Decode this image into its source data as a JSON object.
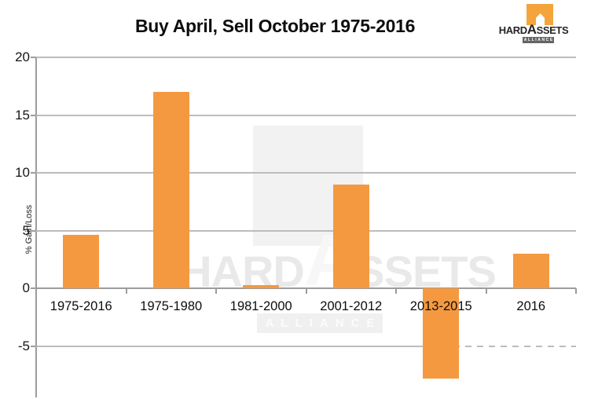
{
  "title": "Buy April, Sell October 1975-2016",
  "brand": {
    "hard": "HARD",
    "a": "A",
    "ssets": "SSETS",
    "alliance": "ALLIANCE"
  },
  "colors": {
    "bar": "#F59940",
    "logo_orange": "#F5A43C",
    "gridline": "#bcbcbc",
    "axis": "#9c9c9c"
  },
  "chart_data": {
    "type": "bar",
    "title": "Buy April, Sell October 1975-2016",
    "categories": [
      "1975-2016",
      "1975-1980",
      "1981-2000",
      "2001-2012",
      "2013-2015",
      "2016"
    ],
    "values": [
      4.6,
      17,
      0.3,
      9,
      -7.8,
      3
    ],
    "xlabel": "",
    "ylabel": "% Gain/Loss",
    "yticks": [
      20,
      15,
      10,
      5,
      0,
      -5
    ],
    "ylim": [
      -9.5,
      20
    ],
    "grid": true,
    "legend": false,
    "bar_color": "#F59940"
  }
}
